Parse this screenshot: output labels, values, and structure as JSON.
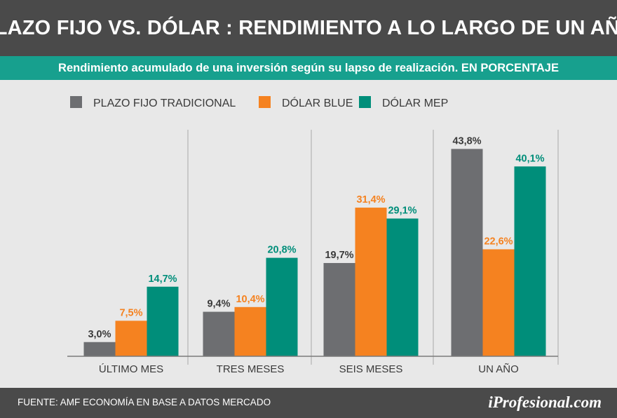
{
  "header": {
    "title": "PLAZO FIJO VS. DÓLAR : RENDIMIENTO A LO LARGO DE UN AÑO",
    "subtitle": "Rendimiento acumulado de una inversión según su lapso de realización. EN PORCENTAJE"
  },
  "footer": {
    "source": "FUENTE:  AMF ECONOMÍA EN BASE A DATOS MERCADO",
    "brand": "iProfesional.com"
  },
  "chart_data": {
    "type": "bar",
    "categories": [
      "ÚLTIMO MES",
      "TRES MESES",
      "SEIS MESES",
      "UN AÑO"
    ],
    "series": [
      {
        "name": "PLAZO FIJO TRADICIONAL",
        "color": "#6d6e71",
        "label_color": "#3a3a3a",
        "values": [
          3.0,
          9.4,
          19.7,
          43.8
        ],
        "labels": [
          "3,0%",
          "9,4%",
          "19,7%",
          "43,8%"
        ]
      },
      {
        "name": "DÓLAR BLUE",
        "color": "#f58220",
        "label_color": "#f58220",
        "values": [
          7.5,
          10.4,
          31.4,
          22.6
        ],
        "labels": [
          "7,5%",
          "10,4%",
          "31,4%",
          "22,6%"
        ]
      },
      {
        "name": "DÓLAR MEP",
        "color": "#008e7a",
        "label_color": "#008e7a",
        "values": [
          14.7,
          20.8,
          29.1,
          40.1
        ],
        "labels": [
          "14,7%",
          "20,8%",
          "29,1%",
          "40,1%"
        ]
      }
    ],
    "ylim": [
      0,
      48
    ],
    "grid": false,
    "legend": "top-left"
  }
}
